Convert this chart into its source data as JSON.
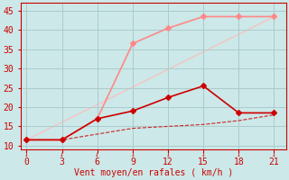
{
  "xlabel": "Vent moyen/en rafales ( km/h )",
  "bg_color": "#cce8e8",
  "grid_color": "#aacccc",
  "x_ticks": [
    0,
    3,
    6,
    9,
    12,
    15,
    18,
    21
  ],
  "xlim": [
    -0.5,
    22
  ],
  "ylim": [
    9,
    47
  ],
  "y_ticks": [
    10,
    15,
    20,
    25,
    30,
    35,
    40,
    45
  ],
  "line_diagonal": {
    "x": [
      0,
      21
    ],
    "y": [
      11.5,
      43.5
    ],
    "color": "#ffbbbb",
    "linestyle": "-",
    "linewidth": 0.8
  },
  "line_dashed": {
    "x": [
      0,
      3,
      6,
      9,
      12,
      15,
      18,
      21
    ],
    "y": [
      11.5,
      11.5,
      13.0,
      14.5,
      15.0,
      15.5,
      16.5,
      18.0
    ],
    "color": "#cc2222",
    "linestyle": "--",
    "linewidth": 0.8
  },
  "line_pink": {
    "x": [
      0,
      3,
      6,
      9,
      12,
      15,
      18,
      21
    ],
    "y": [
      11.5,
      11.5,
      17.0,
      36.5,
      40.5,
      43.5,
      43.5,
      43.5
    ],
    "color": "#ff8888",
    "marker": "D",
    "markersize": 3,
    "linewidth": 1.2
  },
  "line_dark": {
    "x": [
      0,
      3,
      6,
      9,
      12,
      15,
      18,
      21
    ],
    "y": [
      11.5,
      11.5,
      17.0,
      19.0,
      22.5,
      25.5,
      18.5,
      18.5
    ],
    "color": "#cc0000",
    "marker": "D",
    "markersize": 3,
    "linewidth": 1.2
  },
  "tick_color": "#cc0000",
  "label_color": "#cc0000",
  "spine_color": "#cc0000",
  "xlabel_fontsize": 7,
  "tick_fontsize": 7
}
